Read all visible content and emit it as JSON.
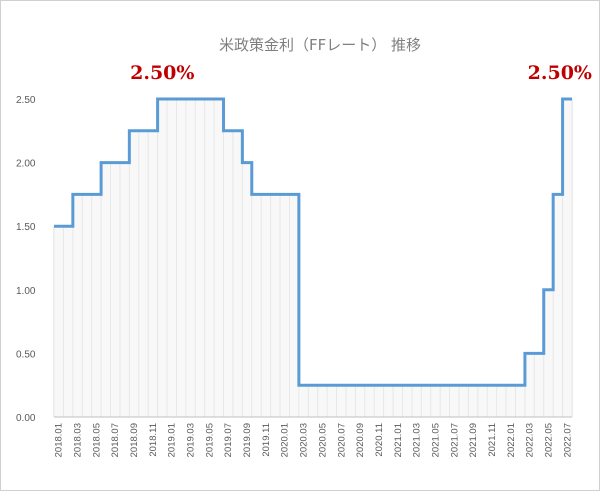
{
  "chart_data": {
    "type": "line",
    "step": true,
    "title": "米政策金利（FFレート） 推移",
    "xlabel": "",
    "ylabel": "",
    "ylim": [
      0,
      2.5
    ],
    "y_ticks": [
      "0.00",
      "0.50",
      "1.00",
      "1.50",
      "2.00",
      "2.50"
    ],
    "x_tick_labels": [
      "2018.01",
      "2018.03",
      "2018.05",
      "2018.07",
      "2018.09",
      "2018.11",
      "2019.01",
      "2019.03",
      "2019.05",
      "2019.07",
      "2019.09",
      "2019.11",
      "2020.01",
      "2020.03",
      "2020.05",
      "2020.07",
      "2020.09",
      "2020.11",
      "2021.01",
      "2021.03",
      "2021.05",
      "2021.07",
      "2021.09",
      "2021.11",
      "2022.01",
      "2022.03",
      "2022.05",
      "2022.07"
    ],
    "grid": "vertical",
    "series_color": "#5b9bd5",
    "annotation_color": "#c00000",
    "series": [
      {
        "x": [
          "2018.01",
          "2018.02",
          "2018.03",
          "2018.04",
          "2018.05",
          "2018.06",
          "2018.07",
          "2018.08",
          "2018.09",
          "2018.10",
          "2018.11",
          "2018.12",
          "2019.01",
          "2019.02",
          "2019.03",
          "2019.04",
          "2019.05",
          "2019.06",
          "2019.07",
          "2019.08",
          "2019.09",
          "2019.10",
          "2019.11",
          "2019.12",
          "2020.01",
          "2020.02",
          "2020.03",
          "2020.04",
          "2020.05",
          "2020.06",
          "2020.07",
          "2020.08",
          "2020.09",
          "2020.10",
          "2020.11",
          "2020.12",
          "2021.01",
          "2021.02",
          "2021.03",
          "2021.04",
          "2021.05",
          "2021.06",
          "2021.07",
          "2021.08",
          "2021.09",
          "2021.10",
          "2021.11",
          "2021.12",
          "2022.01",
          "2022.02",
          "2022.03",
          "2022.04",
          "2022.05",
          "2022.06",
          "2022.07"
        ],
        "values": [
          1.5,
          1.5,
          1.75,
          1.75,
          1.75,
          2.0,
          2.0,
          2.0,
          2.25,
          2.25,
          2.25,
          2.5,
          2.5,
          2.5,
          2.5,
          2.5,
          2.5,
          2.5,
          2.25,
          2.25,
          2.0,
          1.75,
          1.75,
          1.75,
          1.75,
          1.75,
          0.25,
          0.25,
          0.25,
          0.25,
          0.25,
          0.25,
          0.25,
          0.25,
          0.25,
          0.25,
          0.25,
          0.25,
          0.25,
          0.25,
          0.25,
          0.25,
          0.25,
          0.25,
          0.25,
          0.25,
          0.25,
          0.25,
          0.25,
          0.25,
          0.5,
          0.5,
          1.0,
          1.75,
          2.5
        ]
      }
    ],
    "annotations": [
      {
        "text": "2.50%",
        "x": "2018.12",
        "y": 2.5
      },
      {
        "text": "2.50%",
        "x": "2022.07",
        "y": 2.5
      }
    ]
  }
}
